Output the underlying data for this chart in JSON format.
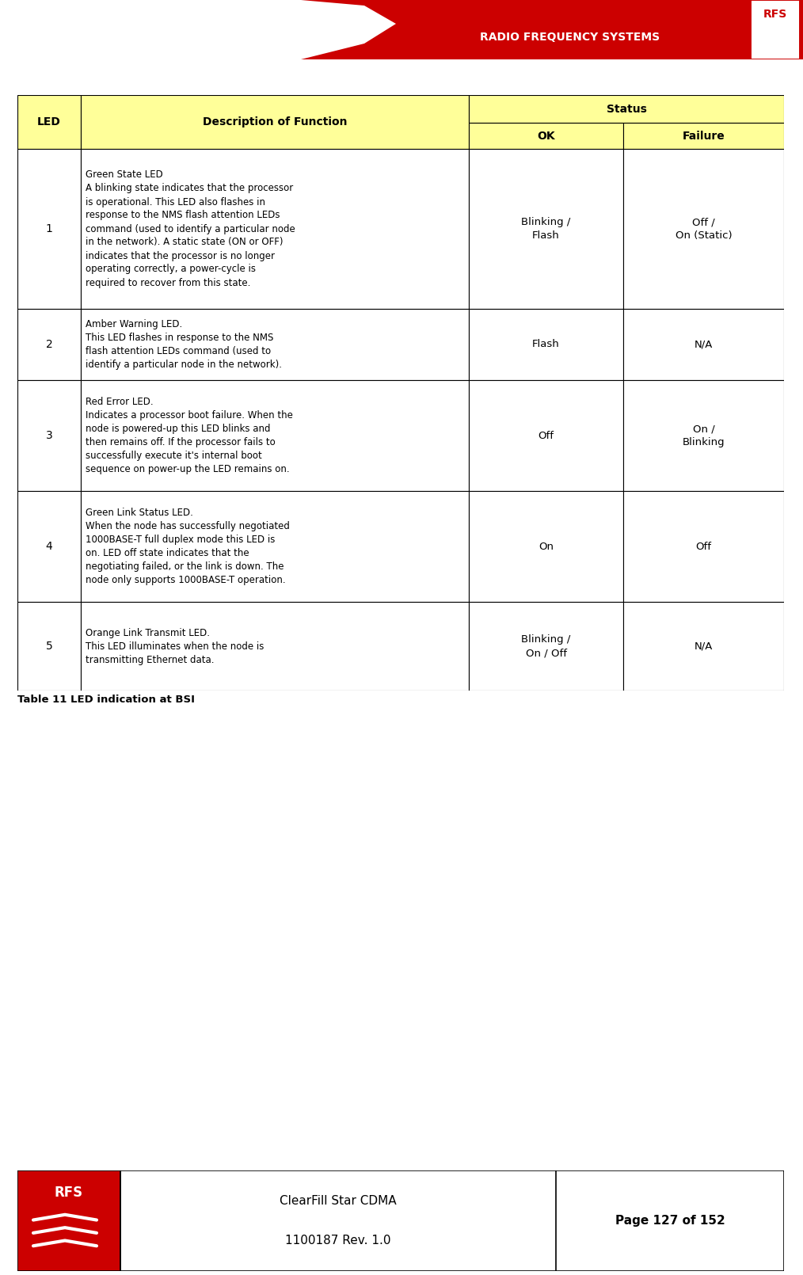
{
  "header_bg": "#CC0000",
  "page_bg": "#FFFFFF",
  "table_header_bg": "#FFFF99",
  "table_border": "#000000",
  "rows": [
    {
      "led": "1",
      "desc": "Green State LED\nA blinking state indicates that the processor\nis operational. This LED also flashes in\nresponse to the NMS flash attention LEDs\ncommand (used to identify a particular node\nin the network). A static state (ON or OFF)\nindicates that the processor is no longer\noperating correctly, a power-cycle is\nrequired to recover from this state.",
      "ok": "Blinking /\nFlash",
      "failure": "Off /\nOn (Static)"
    },
    {
      "led": "2",
      "desc": "Amber Warning LED.\nThis LED flashes in response to the NMS\nflash attention LEDs command (used to\nidentify a particular node in the network).",
      "ok": "Flash",
      "failure": "N/A"
    },
    {
      "led": "3",
      "desc": "Red Error LED.\nIndicates a processor boot failure. When the\nnode is powered-up this LED blinks and\nthen remains off. If the processor fails to\nsuccessfully execute it's internal boot\nsequence on power-up the LED remains on.",
      "ok": "Off",
      "failure": "On /\nBlinking"
    },
    {
      "led": "4",
      "desc": "Green Link Status LED.\nWhen the node has successfully negotiated\n1000BASE-T full duplex mode this LED is\non. LED off state indicates that the\nnegotiating failed, or the link is down. The\nnode only supports 1000BASE-T operation.",
      "ok": "On",
      "failure": "Off"
    },
    {
      "led": "5",
      "desc": "Orange Link Transmit LED.\nThis LED illuminates when the node is\ntransmitting Ethernet data.",
      "ok": "Blinking /\nOn / Off",
      "failure": "N/A"
    }
  ],
  "footer_text1": "ClearFill Star CDMA",
  "footer_text2": "1100187 Rev. 1.0",
  "footer_text3": "Page 127 of 152",
  "table_caption": "Table 11 LED indication at BSI",
  "radio_text": "RADIO FREQUENCY SYSTEMS"
}
